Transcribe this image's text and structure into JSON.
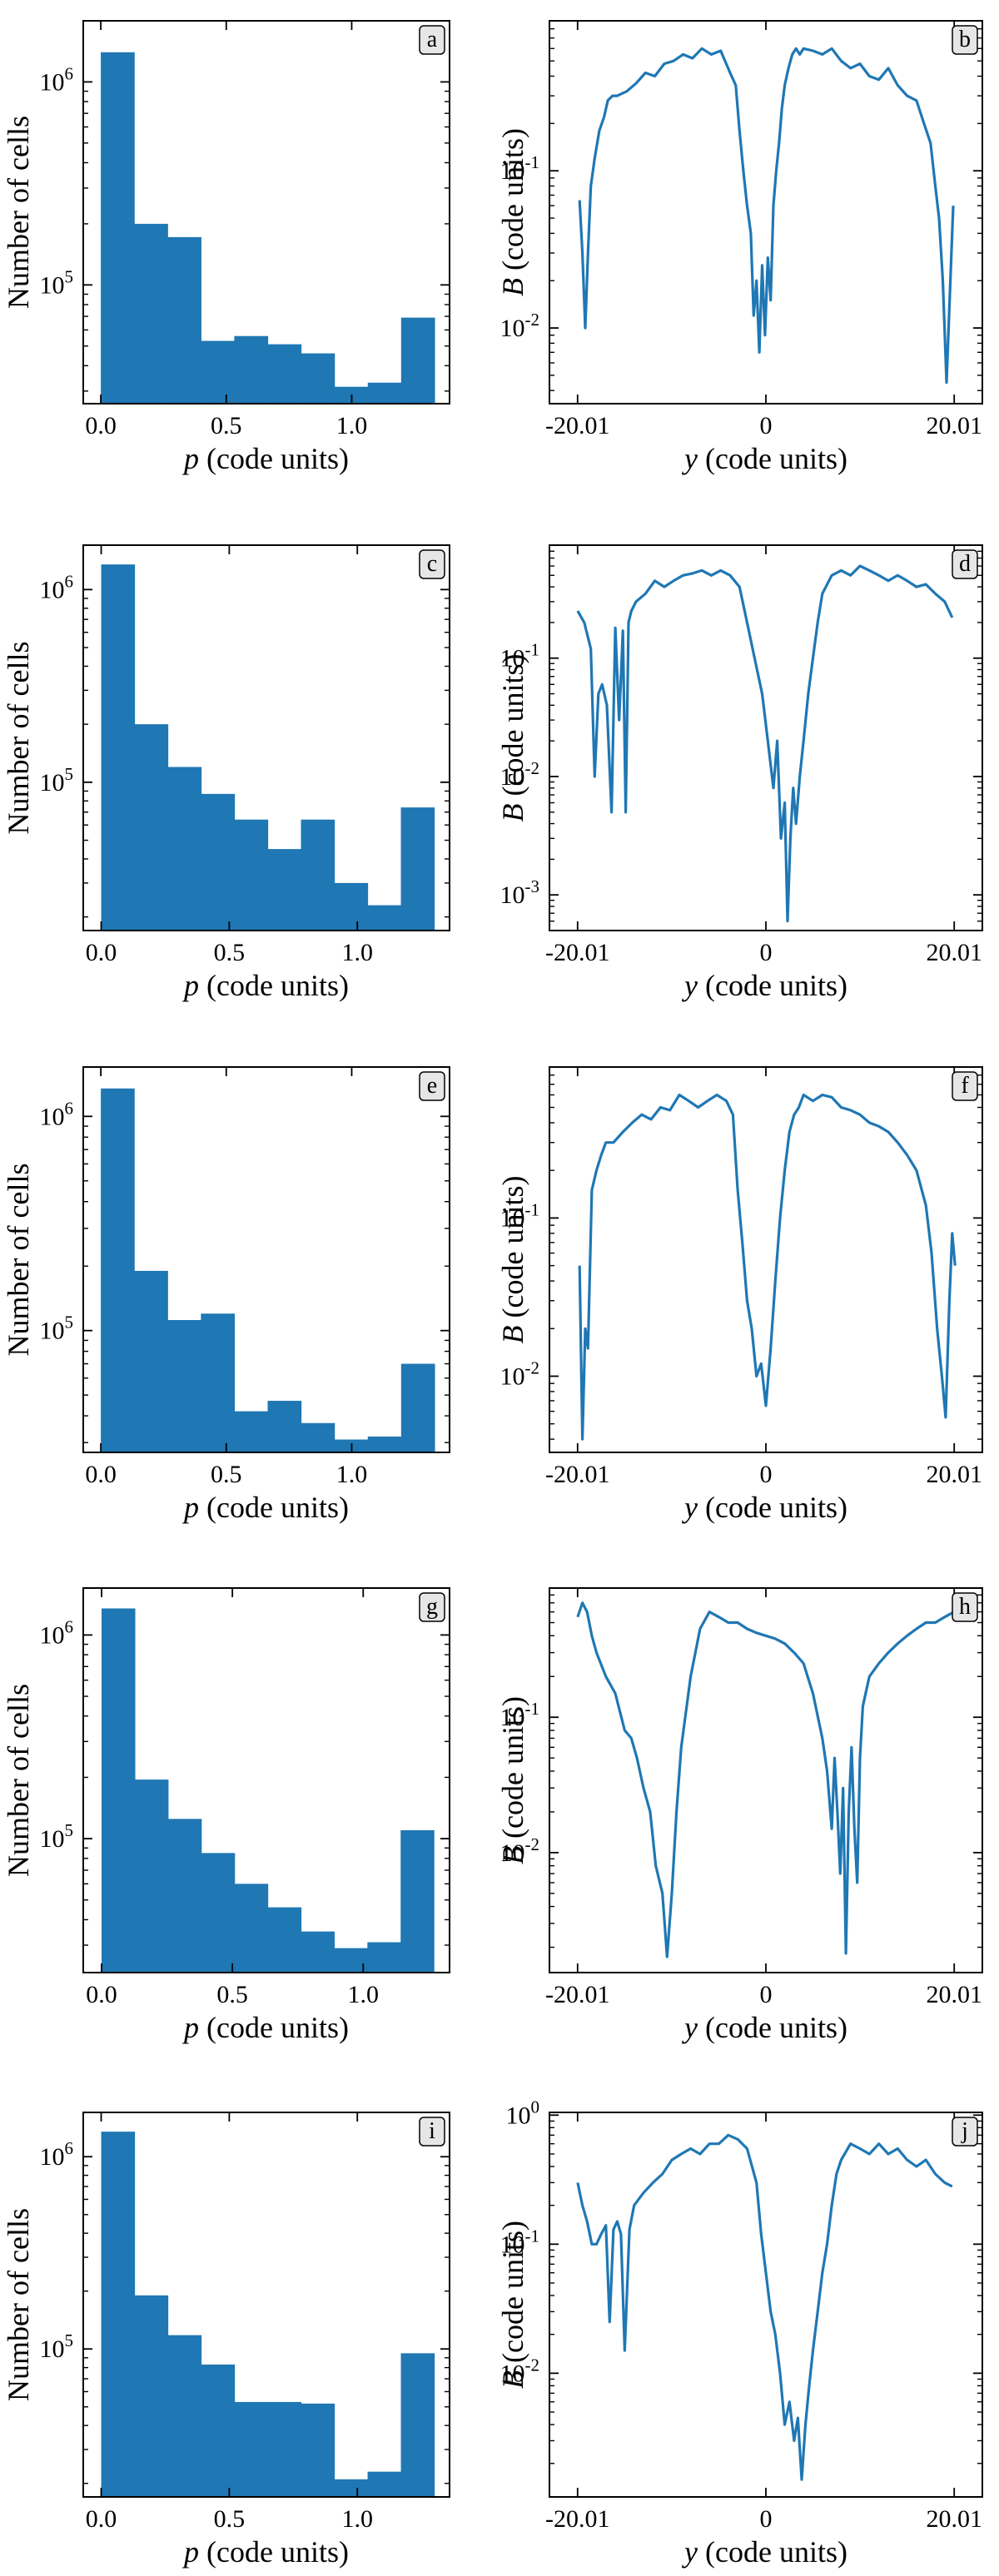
{
  "figure": {
    "colors": {
      "bar": "#1f77b4",
      "line": "#1f77b4",
      "badge_fill": "#e6e6e6",
      "axis": "#000000"
    },
    "hist_ylabel": "Number of cells",
    "hist_xlabel_var": "p",
    "hist_xlabel_unit": " (code units)",
    "line_ylabel_var": "B",
    "line_ylabel_unit": " (code units)",
    "line_xlabel_var": "y",
    "line_xlabel_unit": " (code units)"
  },
  "chart_data": [
    {
      "type": "bar",
      "label": "a",
      "xlabel": "p (code units)",
      "ylabel": "Number of cells",
      "yscale": "log",
      "xlim": [
        -0.07,
        1.39
      ],
      "ylim": [
        26000,
        2000000
      ],
      "xticks": [
        {
          "v": 0.0,
          "t": "0.0"
        },
        {
          "v": 0.5,
          "t": "0.5"
        },
        {
          "v": 1.0,
          "t": "1.0"
        }
      ],
      "yticks": [
        {
          "v": 100000,
          "b": "10",
          "e": "5"
        },
        {
          "v": 1000000,
          "b": "10",
          "e": "6"
        }
      ],
      "bin_edges": [
        0.0,
        0.133,
        0.266,
        0.399,
        0.532,
        0.665,
        0.798,
        0.931,
        1.064,
        1.197,
        1.33
      ],
      "values": [
        1400000,
        200000,
        172000,
        53000,
        56000,
        51000,
        46000,
        31500,
        33000,
        69000
      ]
    },
    {
      "type": "line",
      "label": "b",
      "xlabel": "y (code units)",
      "ylabel": "B (code units)",
      "yscale": "log",
      "xlim": [
        -23.0,
        23.0
      ],
      "ylim": [
        0.0033,
        0.9
      ],
      "xticks": [
        {
          "v": -20.01,
          "t": "-20.01"
        },
        {
          "v": 0,
          "t": "0"
        },
        {
          "v": 20.01,
          "t": "20.01"
        }
      ],
      "yticks": [
        {
          "v": 0.01,
          "b": "10",
          "e": "-2"
        },
        {
          "v": 0.1,
          "b": "10",
          "e": "-1"
        }
      ],
      "x": [
        -19.8,
        -19.5,
        -19.2,
        -18.9,
        -18.6,
        -18.2,
        -17.7,
        -17.2,
        -16.8,
        -16.3,
        -15.8,
        -14.8,
        -13.8,
        -12.8,
        -11.8,
        -10.8,
        -9.8,
        -8.8,
        -7.8,
        -6.8,
        -5.8,
        -4.8,
        -3.8,
        -3.2,
        -2.8,
        -2.4,
        -2.0,
        -1.6,
        -1.3,
        -1.0,
        -0.7,
        -0.4,
        -0.1,
        0.2,
        0.5,
        0.8,
        1.1,
        1.4,
        1.7,
        2.0,
        2.4,
        2.8,
        3.2,
        3.6,
        4.0,
        5.0,
        6.0,
        7.0,
        8.0,
        9.0,
        10.0,
        11.0,
        12.0,
        13.0,
        14.0,
        15.0,
        16.0,
        16.8,
        17.5,
        18.0,
        18.4,
        18.8,
        19.2,
        19.6,
        19.9
      ],
      "values": [
        0.065,
        0.03,
        0.01,
        0.03,
        0.08,
        0.12,
        0.18,
        0.22,
        0.28,
        0.3,
        0.3,
        0.32,
        0.36,
        0.42,
        0.4,
        0.48,
        0.5,
        0.55,
        0.52,
        0.6,
        0.55,
        0.58,
        0.42,
        0.35,
        0.18,
        0.1,
        0.06,
        0.04,
        0.012,
        0.02,
        0.007,
        0.025,
        0.009,
        0.028,
        0.015,
        0.06,
        0.1,
        0.15,
        0.25,
        0.35,
        0.45,
        0.55,
        0.6,
        0.55,
        0.6,
        0.58,
        0.55,
        0.6,
        0.5,
        0.45,
        0.48,
        0.4,
        0.38,
        0.45,
        0.35,
        0.3,
        0.28,
        0.2,
        0.15,
        0.08,
        0.05,
        0.02,
        0.0045,
        0.02,
        0.06
      ]
    },
    {
      "type": "bar",
      "label": "c",
      "xlabel": "p (code units)",
      "ylabel": "Number of cells",
      "yscale": "log",
      "xlim": [
        -0.07,
        1.36
      ],
      "ylim": [
        17000,
        1700000
      ],
      "xticks": [
        {
          "v": 0.0,
          "t": "0.0"
        },
        {
          "v": 0.5,
          "t": "0.5"
        },
        {
          "v": 1.0,
          "t": "1.0"
        }
      ],
      "yticks": [
        {
          "v": 100000,
          "b": "10",
          "e": "5"
        },
        {
          "v": 1000000,
          "b": "10",
          "e": "6"
        }
      ],
      "bin_edges": [
        0.0,
        0.13,
        0.26,
        0.39,
        0.52,
        0.65,
        0.78,
        0.91,
        1.04,
        1.17,
        1.3
      ],
      "values": [
        1350000,
        200000,
        120000,
        87000,
        64000,
        45000,
        64000,
        30000,
        23000,
        74000
      ]
    },
    {
      "type": "line",
      "label": "d",
      "xlabel": "y (code units)",
      "ylabel": "B (code units)",
      "yscale": "log",
      "xlim": [
        -23.0,
        23.0
      ],
      "ylim": [
        0.0005,
        0.9
      ],
      "xticks": [
        {
          "v": -20.01,
          "t": "-20.01"
        },
        {
          "v": 0,
          "t": "0"
        },
        {
          "v": 20.01,
          "t": "20.01"
        }
      ],
      "yticks": [
        {
          "v": 0.001,
          "b": "10",
          "e": "-3"
        },
        {
          "v": 0.01,
          "b": "10",
          "e": "-2"
        },
        {
          "v": 0.1,
          "b": "10",
          "e": "-1"
        }
      ],
      "x": [
        -20.0,
        -19.3,
        -18.6,
        -18.2,
        -17.8,
        -17.4,
        -16.9,
        -16.4,
        -16.0,
        -15.6,
        -15.2,
        -14.9,
        -14.6,
        -14.3,
        -13.8,
        -12.8,
        -11.8,
        -10.8,
        -9.8,
        -8.8,
        -7.8,
        -6.8,
        -5.8,
        -4.8,
        -3.8,
        -2.8,
        -2.0,
        -1.2,
        -0.4,
        0.2,
        0.8,
        1.2,
        1.6,
        2.0,
        2.3,
        2.6,
        2.9,
        3.2,
        3.6,
        4.0,
        4.5,
        5.0,
        5.5,
        6.0,
        7.0,
        8.0,
        9.0,
        10.0,
        11.0,
        12.0,
        13.0,
        14.0,
        15.0,
        16.0,
        17.0,
        18.0,
        19.0,
        19.8
      ],
      "values": [
        0.25,
        0.2,
        0.12,
        0.01,
        0.05,
        0.06,
        0.04,
        0.005,
        0.18,
        0.03,
        0.17,
        0.005,
        0.2,
        0.25,
        0.3,
        0.35,
        0.45,
        0.4,
        0.45,
        0.5,
        0.52,
        0.55,
        0.5,
        0.55,
        0.5,
        0.4,
        0.2,
        0.1,
        0.05,
        0.02,
        0.008,
        0.02,
        0.003,
        0.006,
        0.0006,
        0.003,
        0.008,
        0.004,
        0.01,
        0.02,
        0.05,
        0.1,
        0.2,
        0.35,
        0.5,
        0.55,
        0.5,
        0.6,
        0.55,
        0.5,
        0.45,
        0.5,
        0.45,
        0.4,
        0.42,
        0.35,
        0.3,
        0.22
      ]
    },
    {
      "type": "bar",
      "label": "e",
      "xlabel": "p (code units)",
      "ylabel": "Number of cells",
      "yscale": "log",
      "xlim": [
        -0.07,
        1.39
      ],
      "ylim": [
        27000,
        1700000
      ],
      "xticks": [
        {
          "v": 0.0,
          "t": "0.0"
        },
        {
          "v": 0.5,
          "t": "0.5"
        },
        {
          "v": 1.0,
          "t": "1.0"
        }
      ],
      "yticks": [
        {
          "v": 100000,
          "b": "10",
          "e": "5"
        },
        {
          "v": 1000000,
          "b": "10",
          "e": "6"
        }
      ],
      "bin_edges": [
        0.0,
        0.133,
        0.266,
        0.399,
        0.532,
        0.665,
        0.798,
        0.931,
        1.064,
        1.197,
        1.33
      ],
      "values": [
        1350000,
        190000,
        112000,
        120000,
        42000,
        47000,
        37000,
        31000,
        32000,
        70000
      ]
    },
    {
      "type": "line",
      "label": "f",
      "xlabel": "y (code units)",
      "ylabel": "B (code units)",
      "yscale": "log",
      "xlim": [
        -23.0,
        23.0
      ],
      "ylim": [
        0.0033,
        0.9
      ],
      "xticks": [
        {
          "v": -20.01,
          "t": "-20.01"
        },
        {
          "v": 0,
          "t": "0"
        },
        {
          "v": 20.01,
          "t": "20.01"
        }
      ],
      "yticks": [
        {
          "v": 0.01,
          "b": "10",
          "e": "-2"
        },
        {
          "v": 0.1,
          "b": "10",
          "e": "-1"
        }
      ],
      "x": [
        -19.8,
        -19.5,
        -19.2,
        -18.9,
        -18.5,
        -18.0,
        -17.5,
        -17.0,
        -16.2,
        -15.2,
        -14.2,
        -13.2,
        -12.2,
        -11.2,
        -10.2,
        -9.2,
        -8.2,
        -7.2,
        -6.2,
        -5.2,
        -4.2,
        -3.5,
        -3.0,
        -2.5,
        -2.0,
        -1.5,
        -1.0,
        -0.5,
        0.0,
        0.5,
        1.0,
        1.5,
        2.0,
        2.5,
        3.0,
        3.5,
        4.0,
        5.0,
        6.0,
        7.0,
        8.0,
        9.0,
        10.0,
        11.0,
        12.0,
        13.0,
        14.0,
        15.0,
        16.0,
        17.0,
        17.6,
        18.2,
        18.7,
        19.1,
        19.5,
        19.8,
        20.1
      ],
      "values": [
        0.05,
        0.004,
        0.02,
        0.015,
        0.15,
        0.2,
        0.25,
        0.3,
        0.3,
        0.35,
        0.4,
        0.45,
        0.42,
        0.5,
        0.48,
        0.6,
        0.55,
        0.5,
        0.55,
        0.6,
        0.55,
        0.45,
        0.15,
        0.07,
        0.03,
        0.02,
        0.01,
        0.012,
        0.0065,
        0.015,
        0.04,
        0.1,
        0.2,
        0.35,
        0.45,
        0.5,
        0.6,
        0.55,
        0.6,
        0.58,
        0.5,
        0.48,
        0.45,
        0.4,
        0.38,
        0.35,
        0.3,
        0.25,
        0.2,
        0.12,
        0.06,
        0.02,
        0.01,
        0.0055,
        0.03,
        0.08,
        0.05
      ]
    },
    {
      "type": "bar",
      "label": "g",
      "xlabel": "p (code units)",
      "ylabel": "Number of cells",
      "yscale": "log",
      "xlim": [
        -0.07,
        1.33
      ],
      "ylim": [
        22000,
        1700000
      ],
      "xticks": [
        {
          "v": 0.0,
          "t": "0.0"
        },
        {
          "v": 0.5,
          "t": "0.5"
        },
        {
          "v": 1.0,
          "t": "1.0"
        }
      ],
      "yticks": [
        {
          "v": 100000,
          "b": "10",
          "e": "5"
        },
        {
          "v": 1000000,
          "b": "10",
          "e": "6"
        }
      ],
      "bin_edges": [
        0.0,
        0.127,
        0.254,
        0.381,
        0.508,
        0.635,
        0.762,
        0.889,
        1.016,
        1.143,
        1.27
      ],
      "values": [
        1350000,
        195000,
        125000,
        85000,
        60000,
        46000,
        35000,
        29000,
        31000,
        110000
      ]
    },
    {
      "type": "line",
      "label": "h",
      "xlabel": "y (code units)",
      "ylabel": "B (code units)",
      "yscale": "log",
      "xlim": [
        -23.0,
        23.0
      ],
      "ylim": [
        0.0013,
        0.9
      ],
      "xticks": [
        {
          "v": -20.01,
          "t": "-20.01"
        },
        {
          "v": 0,
          "t": "0"
        },
        {
          "v": 20.01,
          "t": "20.01"
        }
      ],
      "yticks": [
        {
          "v": 0.01,
          "b": "10",
          "e": "-2"
        },
        {
          "v": 0.1,
          "b": "10",
          "e": "-1"
        }
      ],
      "x": [
        -20.0,
        -19.5,
        -19.0,
        -18.5,
        -18.0,
        -17.0,
        -16.0,
        -15.0,
        -14.3,
        -13.7,
        -13.0,
        -12.3,
        -11.7,
        -11.0,
        -10.5,
        -10.0,
        -9.5,
        -9.0,
        -8.0,
        -7.0,
        -6.0,
        -5.0,
        -4.0,
        -3.0,
        -2.0,
        -1.0,
        0.0,
        1.0,
        2.0,
        3.0,
        4.0,
        5.0,
        6.0,
        6.5,
        7.0,
        7.3,
        7.6,
        7.9,
        8.2,
        8.5,
        8.8,
        9.1,
        9.4,
        9.7,
        10.0,
        10.3,
        10.6,
        11.0,
        12.0,
        13.0,
        14.0,
        15.0,
        16.0,
        17.0,
        18.0,
        19.0,
        20.0
      ],
      "values": [
        0.55,
        0.7,
        0.6,
        0.4,
        0.3,
        0.2,
        0.15,
        0.08,
        0.07,
        0.05,
        0.03,
        0.02,
        0.008,
        0.005,
        0.0017,
        0.005,
        0.02,
        0.06,
        0.2,
        0.45,
        0.6,
        0.55,
        0.5,
        0.5,
        0.45,
        0.42,
        0.4,
        0.38,
        0.35,
        0.3,
        0.25,
        0.15,
        0.07,
        0.04,
        0.015,
        0.05,
        0.02,
        0.007,
        0.03,
        0.0018,
        0.02,
        0.06,
        0.015,
        0.006,
        0.05,
        0.12,
        0.15,
        0.2,
        0.25,
        0.3,
        0.35,
        0.4,
        0.45,
        0.5,
        0.5,
        0.55,
        0.6
      ]
    },
    {
      "type": "bar",
      "label": "i",
      "xlabel": "p (code units)",
      "ylabel": "Number of cells",
      "yscale": "log",
      "xlim": [
        -0.07,
        1.36
      ],
      "ylim": [
        17000,
        1700000
      ],
      "xticks": [
        {
          "v": 0.0,
          "t": "0.0"
        },
        {
          "v": 0.5,
          "t": "0.5"
        },
        {
          "v": 1.0,
          "t": "1.0"
        }
      ],
      "yticks": [
        {
          "v": 100000,
          "b": "10",
          "e": "5"
        },
        {
          "v": 1000000,
          "b": "10",
          "e": "6"
        }
      ],
      "bin_edges": [
        0.0,
        0.13,
        0.26,
        0.39,
        0.52,
        0.65,
        0.78,
        0.91,
        1.04,
        1.17,
        1.3
      ],
      "values": [
        1350000,
        190000,
        118000,
        83000,
        53000,
        53000,
        52000,
        21000,
        23000,
        95000
      ]
    },
    {
      "type": "line",
      "label": "j",
      "xlabel": "y (code units)",
      "ylabel": "B (code units)",
      "yscale": "log",
      "xlim": [
        -23.0,
        23.0
      ],
      "ylim": [
        0.0011,
        1.05
      ],
      "xticks": [
        {
          "v": -20.01,
          "t": "-20.01"
        },
        {
          "v": 0,
          "t": "0"
        },
        {
          "v": 20.01,
          "t": "20.01"
        }
      ],
      "yticks": [
        {
          "v": 0.01,
          "b": "10",
          "e": "-2"
        },
        {
          "v": 0.1,
          "b": "10",
          "e": "-1"
        },
        {
          "v": 1,
          "b": "10",
          "e": "0"
        }
      ],
      "x": [
        -20.0,
        -19.5,
        -19.0,
        -18.5,
        -18.0,
        -17.5,
        -17.0,
        -16.6,
        -16.2,
        -15.8,
        -15.4,
        -15.0,
        -14.5,
        -14.0,
        -13.0,
        -12.0,
        -11.0,
        -10.0,
        -9.0,
        -8.0,
        -7.0,
        -6.0,
        -5.0,
        -4.0,
        -3.0,
        -2.0,
        -1.0,
        -0.5,
        0.0,
        0.5,
        1.0,
        1.5,
        2.0,
        2.5,
        3.0,
        3.4,
        3.8,
        4.2,
        4.6,
        5.0,
        5.5,
        6.0,
        6.5,
        7.0,
        7.5,
        8.0,
        9.0,
        10.0,
        11.0,
        12.0,
        13.0,
        14.0,
        15.0,
        16.0,
        17.0,
        18.0,
        19.0,
        19.8
      ],
      "values": [
        0.3,
        0.2,
        0.15,
        0.1,
        0.1,
        0.12,
        0.14,
        0.025,
        0.13,
        0.15,
        0.12,
        0.015,
        0.13,
        0.2,
        0.25,
        0.3,
        0.35,
        0.45,
        0.5,
        0.55,
        0.5,
        0.6,
        0.6,
        0.7,
        0.65,
        0.55,
        0.3,
        0.12,
        0.06,
        0.03,
        0.02,
        0.01,
        0.004,
        0.006,
        0.003,
        0.0045,
        0.0015,
        0.004,
        0.008,
        0.015,
        0.03,
        0.06,
        0.1,
        0.2,
        0.35,
        0.45,
        0.6,
        0.55,
        0.5,
        0.6,
        0.5,
        0.55,
        0.45,
        0.4,
        0.45,
        0.35,
        0.3,
        0.28
      ]
    }
  ]
}
